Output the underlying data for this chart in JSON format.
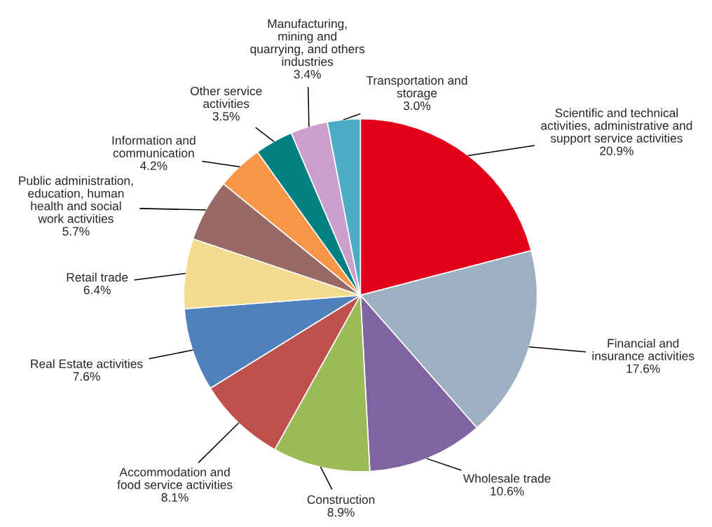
{
  "chart_data": {
    "type": "pie",
    "categories": [
      "Scientific and technical\nactivities, administrative and\nsupport service activities",
      "Financial and\ninsurance activities",
      "Wholesale trade",
      "Construction",
      "Accommodation and\nfood service activities",
      "Real Estate activities",
      "Retail trade",
      "Public administration,\neducation, human\nhealth and social\nwork activities",
      "Information and\ncommunication",
      "Other service\nactivities",
      "Manufacturing,\nmining and\nquarrying, and others\nindustries",
      "Transportation and\nstorage"
    ],
    "values": [
      20.9,
      17.6,
      10.6,
      8.9,
      8.1,
      7.6,
      6.4,
      5.7,
      4.2,
      3.5,
      3.4,
      3.0
    ],
    "value_labels": [
      "20.9%",
      "17.6%",
      "10.6%",
      "8.9%",
      "8.1%",
      "7.6%",
      "6.4%",
      "5.7%",
      "4.2%",
      "3.5%",
      "3.4%",
      "3.0%"
    ],
    "colors": [
      "#e2001a",
      "#9eb1c2",
      "#8064a2",
      "#9bbb59",
      "#c0504d",
      "#4f81bd",
      "#f2db8d",
      "#996966",
      "#f79646",
      "#008080",
      "#cc9ecc",
      "#4bacc6"
    ]
  }
}
